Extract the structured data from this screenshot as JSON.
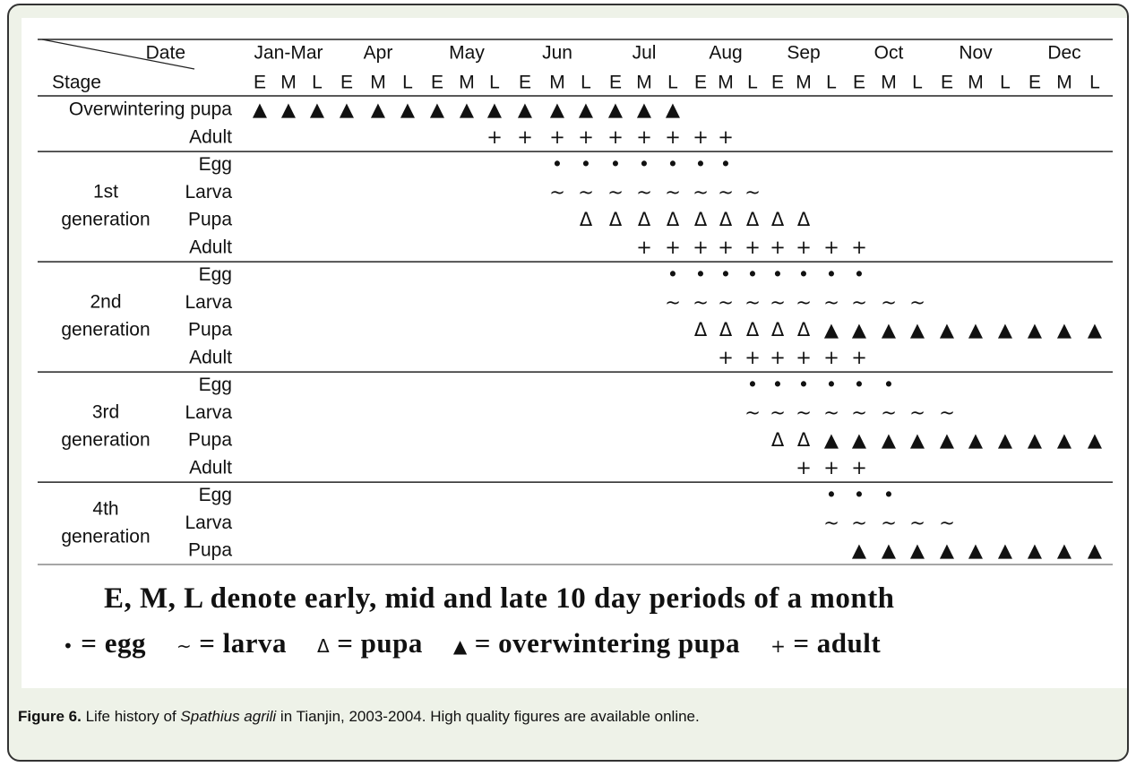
{
  "table": {
    "corner_top": "Date",
    "corner_bottom": "Stage",
    "months": [
      "Jan-Mar",
      "Apr",
      "May",
      "Jun",
      "Jul",
      "Aug",
      "Sep",
      "Oct",
      "Nov",
      "Dec"
    ],
    "periods": [
      "E",
      "M",
      "L",
      "E",
      "M",
      "L",
      "E",
      "M",
      "L",
      "E",
      "M",
      "L",
      "E",
      "M",
      "L",
      "E",
      "M",
      "L",
      "E",
      "M",
      "L",
      "E",
      "M",
      "L",
      "E",
      "M",
      "L",
      "E",
      "M",
      "L"
    ],
    "sections": [
      {
        "generation": null,
        "rows": [
          {
            "stage": "Overwintering pupa",
            "cells": [
              "▲",
              "▲",
              "▲",
              "▲",
              "▲",
              "▲",
              "▲",
              "▲",
              "▲",
              "▲",
              "▲",
              "▲",
              "▲",
              "▲",
              "▲",
              null,
              null,
              null,
              null,
              null,
              null,
              null,
              null,
              null,
              null,
              null,
              null,
              null,
              null,
              null
            ]
          },
          {
            "stage": "Adult",
            "cells": [
              null,
              null,
              null,
              null,
              null,
              null,
              null,
              null,
              "+",
              "+",
              "+",
              "+",
              "+",
              "+",
              "+",
              "+",
              "+",
              null,
              null,
              null,
              null,
              null,
              null,
              null,
              null,
              null,
              null,
              null,
              null,
              null
            ]
          }
        ]
      },
      {
        "generation": [
          "1st",
          "generation"
        ],
        "rows": [
          {
            "stage": "Egg",
            "cells": [
              null,
              null,
              null,
              null,
              null,
              null,
              null,
              null,
              null,
              null,
              "•",
              "•",
              "•",
              "•",
              "•",
              "•",
              "•",
              null,
              null,
              null,
              null,
              null,
              null,
              null,
              null,
              null,
              null,
              null,
              null,
              null
            ]
          },
          {
            "stage": "Larva",
            "cells": [
              null,
              null,
              null,
              null,
              null,
              null,
              null,
              null,
              null,
              null,
              "~",
              "~",
              "~",
              "~",
              "~",
              "~",
              "~",
              "~",
              null,
              null,
              null,
              null,
              null,
              null,
              null,
              null,
              null,
              null,
              null,
              null
            ]
          },
          {
            "stage": "Pupa",
            "cells": [
              null,
              null,
              null,
              null,
              null,
              null,
              null,
              null,
              null,
              null,
              null,
              "Δ",
              "Δ",
              "Δ",
              "Δ",
              "Δ",
              "Δ",
              "Δ",
              "Δ",
              "Δ",
              null,
              null,
              null,
              null,
              null,
              null,
              null,
              null,
              null,
              null
            ]
          },
          {
            "stage": "Adult",
            "cells": [
              null,
              null,
              null,
              null,
              null,
              null,
              null,
              null,
              null,
              null,
              null,
              null,
              null,
              "+",
              "+",
              "+",
              "+",
              "+",
              "+",
              "+",
              "+",
              "+",
              null,
              null,
              null,
              null,
              null,
              null,
              null,
              null
            ]
          }
        ]
      },
      {
        "generation": [
          "2nd",
          "generation"
        ],
        "rows": [
          {
            "stage": "Egg",
            "cells": [
              null,
              null,
              null,
              null,
              null,
              null,
              null,
              null,
              null,
              null,
              null,
              null,
              null,
              null,
              "•",
              "•",
              "•",
              "•",
              "•",
              "•",
              "•",
              "•",
              null,
              null,
              null,
              null,
              null,
              null,
              null,
              null
            ]
          },
          {
            "stage": "Larva",
            "cells": [
              null,
              null,
              null,
              null,
              null,
              null,
              null,
              null,
              null,
              null,
              null,
              null,
              null,
              null,
              "~",
              "~",
              "~",
              "~",
              "~",
              "~",
              "~",
              "~",
              "~",
              "~",
              null,
              null,
              null,
              null,
              null,
              null
            ]
          },
          {
            "stage": "Pupa",
            "cells": [
              null,
              null,
              null,
              null,
              null,
              null,
              null,
              null,
              null,
              null,
              null,
              null,
              null,
              null,
              null,
              "Δ",
              "Δ",
              "Δ",
              "Δ",
              "Δ",
              "▲",
              "▲",
              "▲",
              "▲",
              "▲",
              "▲",
              "▲",
              "▲",
              "▲",
              "▲"
            ]
          },
          {
            "stage": "Adult",
            "cells": [
              null,
              null,
              null,
              null,
              null,
              null,
              null,
              null,
              null,
              null,
              null,
              null,
              null,
              null,
              null,
              null,
              "+",
              "+",
              "+",
              "+",
              "+",
              "+",
              null,
              null,
              null,
              null,
              null,
              null,
              null,
              null
            ]
          }
        ]
      },
      {
        "generation": [
          "3rd",
          "generation"
        ],
        "rows": [
          {
            "stage": "Egg",
            "cells": [
              null,
              null,
              null,
              null,
              null,
              null,
              null,
              null,
              null,
              null,
              null,
              null,
              null,
              null,
              null,
              null,
              null,
              "•",
              "•",
              "•",
              "•",
              "•",
              "•",
              null,
              null,
              null,
              null,
              null,
              null,
              null
            ]
          },
          {
            "stage": "Larva",
            "cells": [
              null,
              null,
              null,
              null,
              null,
              null,
              null,
              null,
              null,
              null,
              null,
              null,
              null,
              null,
              null,
              null,
              null,
              "~",
              "~",
              "~",
              "~",
              "~",
              "~",
              "~",
              "~",
              null,
              null,
              null,
              null,
              null
            ]
          },
          {
            "stage": "Pupa",
            "cells": [
              null,
              null,
              null,
              null,
              null,
              null,
              null,
              null,
              null,
              null,
              null,
              null,
              null,
              null,
              null,
              null,
              null,
              null,
              "Δ",
              "Δ",
              "▲",
              "▲",
              "▲",
              "▲",
              "▲",
              "▲",
              "▲",
              "▲",
              "▲",
              "▲"
            ]
          },
          {
            "stage": "Adult",
            "cells": [
              null,
              null,
              null,
              null,
              null,
              null,
              null,
              null,
              null,
              null,
              null,
              null,
              null,
              null,
              null,
              null,
              null,
              null,
              null,
              "+",
              "+",
              "+",
              null,
              null,
              null,
              null,
              null,
              null,
              null,
              null
            ]
          }
        ]
      },
      {
        "generation": [
          "4th",
          "generation"
        ],
        "rows": [
          {
            "stage": "Egg",
            "cells": [
              null,
              null,
              null,
              null,
              null,
              null,
              null,
              null,
              null,
              null,
              null,
              null,
              null,
              null,
              null,
              null,
              null,
              null,
              null,
              null,
              "•",
              "•",
              "•",
              null,
              null,
              null,
              null,
              null,
              null,
              null
            ]
          },
          {
            "stage": "Larva",
            "cells": [
              null,
              null,
              null,
              null,
              null,
              null,
              null,
              null,
              null,
              null,
              null,
              null,
              null,
              null,
              null,
              null,
              null,
              null,
              null,
              null,
              "~",
              "~",
              "~",
              "~",
              "~",
              null,
              null,
              null,
              null,
              null
            ]
          },
          {
            "stage": "Pupa",
            "cells": [
              null,
              null,
              null,
              null,
              null,
              null,
              null,
              null,
              null,
              null,
              null,
              null,
              null,
              null,
              null,
              null,
              null,
              null,
              null,
              null,
              null,
              "▲",
              "▲",
              "▲",
              "▲",
              "▲",
              "▲",
              "▲",
              "▲",
              "▲"
            ]
          }
        ]
      }
    ]
  },
  "note": "E, M, L denote early, mid and late 10 day periods of a month",
  "legend": [
    {
      "symbol": "•",
      "text": "= egg"
    },
    {
      "symbol": "~",
      "text": "= larva"
    },
    {
      "symbol": "Δ",
      "text": "= pupa"
    },
    {
      "symbol": "▲",
      "text": "= overwintering pupa"
    },
    {
      "symbol": "+",
      "text": "= adult"
    }
  ],
  "caption": {
    "label": "Figure 6.",
    "before": "Life history of ",
    "species": "Spathius agrili",
    "after": " in Tianjin, 2003-2004. High quality figures are available online."
  }
}
